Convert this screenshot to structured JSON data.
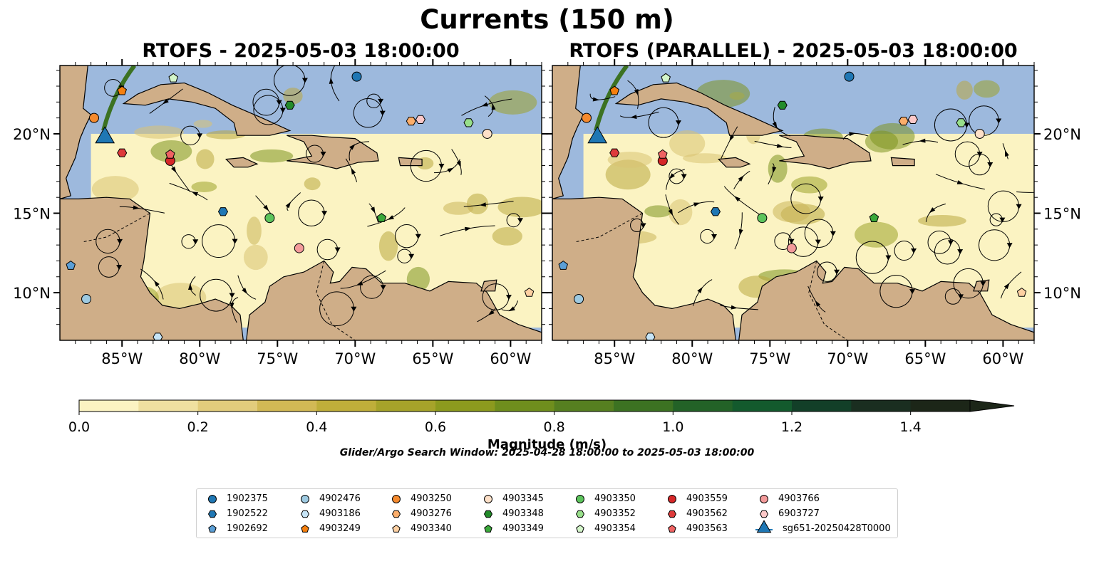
{
  "figure": {
    "title": "Currents (150 m)",
    "panels": [
      {
        "title": "RTOFS - 2025-05-03 18:00:00"
      },
      {
        "title": "RTOFS (PARALLEL) - 2025-05-03 18:00:00"
      }
    ],
    "map_extent": {
      "lon": [
        -89,
        -58
      ],
      "lat": [
        7,
        24.3
      ]
    },
    "lon_ticks": [
      "85°W",
      "80°W",
      "75°W",
      "70°W",
      "65°W",
      "60°W"
    ],
    "lat_ticks": [
      "20°N",
      "15°N",
      "10°N"
    ],
    "colorbar": {
      "label": "Magnitude (m/s)",
      "min": 0,
      "max": 1.5,
      "extend": "max",
      "ticks": [
        "0.0",
        "0.2",
        "0.4",
        "0.6",
        "0.8",
        "1.0",
        "1.2",
        "1.4"
      ],
      "colors": [
        "#fbf3c2",
        "#efe0a0",
        "#e2cc7c",
        "#d2b955",
        "#bfae3a",
        "#a6a32a",
        "#8c9a1e",
        "#6f8e1d",
        "#567f20",
        "#3c7222",
        "#236227",
        "#135a2d",
        "#123f28",
        "#1a2e20",
        "#1c2618"
      ]
    },
    "search_window": "Glider/Argo Search Window: 2025-04-28 18:00:00 to 2025-05-03 18:00:00",
    "map_colors": {
      "ocean_mask": "#93b5e3",
      "land": "#cfae88",
      "coast": "#000000"
    }
  },
  "legend": [
    {
      "label": "1902375",
      "marker": "circle",
      "color": "#1f77b4"
    },
    {
      "label": "1902522",
      "marker": "hexagon",
      "color": "#1f77b4"
    },
    {
      "label": "1902692",
      "marker": "pentagon",
      "color": "#5b9fd6"
    },
    {
      "label": "4902476",
      "marker": "circle",
      "color": "#9ecae1"
    },
    {
      "label": "4903186",
      "marker": "hexagon",
      "color": "#c6e4f6"
    },
    {
      "label": "4903249",
      "marker": "pentagon",
      "color": "#f57f0e"
    },
    {
      "label": "4903250",
      "marker": "circle",
      "color": "#f58a2e"
    },
    {
      "label": "4903276",
      "marker": "hexagon",
      "color": "#fcae6b"
    },
    {
      "label": "4903340",
      "marker": "pentagon",
      "color": "#fdd0a2"
    },
    {
      "label": "4903345",
      "marker": "circle",
      "color": "#fde0c8"
    },
    {
      "label": "4903348",
      "marker": "hexagon",
      "color": "#238b2a"
    },
    {
      "label": "4903349",
      "marker": "pentagon",
      "color": "#3aa83a"
    },
    {
      "label": "4903350",
      "marker": "circle",
      "color": "#5cc45c"
    },
    {
      "label": "4903352",
      "marker": "hexagon",
      "color": "#98df8a"
    },
    {
      "label": "4903354",
      "marker": "pentagon",
      "color": "#d3f5c9"
    },
    {
      "label": "4903559",
      "marker": "circle",
      "color": "#d62728"
    },
    {
      "label": "4903562",
      "marker": "hexagon",
      "color": "#de3a3b"
    },
    {
      "label": "4903563",
      "marker": "pentagon",
      "color": "#ef6262"
    },
    {
      "label": "4903766",
      "marker": "circle",
      "color": "#f39a9a"
    },
    {
      "label": "6903727",
      "marker": "hexagon",
      "color": "#fcc8c8"
    },
    {
      "label": "sg651-20250428T0000",
      "marker": "triangle",
      "color": "#1f77b4"
    }
  ],
  "platform_positions": [
    {
      "id": "1902375",
      "lon": -69.9,
      "lat": 23.6
    },
    {
      "id": "1902522",
      "lon": -78.5,
      "lat": 15.1
    },
    {
      "id": "1902692",
      "lon": -88.3,
      "lat": 11.7
    },
    {
      "id": "4902476",
      "lon": -87.3,
      "lat": 9.6
    },
    {
      "id": "4903186",
      "lon": -82.7,
      "lat": 7.2
    },
    {
      "id": "4903249",
      "lon": -85.0,
      "lat": 22.7
    },
    {
      "id": "4903250",
      "lon": -86.8,
      "lat": 21.0
    },
    {
      "id": "4903276",
      "lon": -66.4,
      "lat": 20.8
    },
    {
      "id": "4903340",
      "lon": -58.8,
      "lat": 10.0
    },
    {
      "id": "4903345",
      "lon": -61.5,
      "lat": 20.0
    },
    {
      "id": "4903348",
      "lon": -74.2,
      "lat": 21.8
    },
    {
      "id": "4903349",
      "lon": -68.3,
      "lat": 14.7
    },
    {
      "id": "4903350",
      "lon": -75.5,
      "lat": 14.7
    },
    {
      "id": "4903352",
      "lon": -62.7,
      "lat": 20.7
    },
    {
      "id": "4903354",
      "lon": -81.7,
      "lat": 23.5
    },
    {
      "id": "4903559",
      "lon": -81.9,
      "lat": 18.3
    },
    {
      "id": "4903562",
      "lon": -85.0,
      "lat": 18.8
    },
    {
      "id": "4903563",
      "lon": -81.9,
      "lat": 18.7
    },
    {
      "id": "4903766",
      "lon": -73.6,
      "lat": 12.8
    },
    {
      "id": "6903727",
      "lon": -65.8,
      "lat": 20.9
    },
    {
      "id": "sg651-20250428T0000",
      "lon": -86.1,
      "lat": 19.9
    }
  ]
}
